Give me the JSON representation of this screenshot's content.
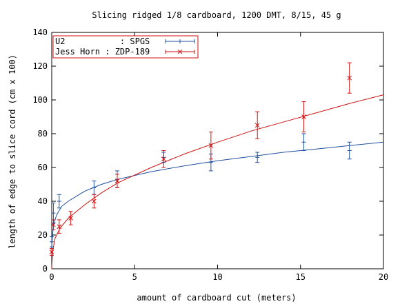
{
  "chart_data": {
    "type": "scatter",
    "title": "Slicing ridged 1/8 cardboard, 1200 DMT, 8/15, 45 g",
    "xlabel": "amount of cardboard cut (meters)",
    "ylabel": "length of edge to slice cord (cm x 100)",
    "xlim": [
      0,
      20
    ],
    "ylim": [
      0,
      140
    ],
    "xticks": [
      0,
      5,
      10,
      15,
      20
    ],
    "yticks": [
      0,
      20,
      40,
      60,
      80,
      100,
      120,
      140
    ],
    "grid": false,
    "legend_position": "top-left",
    "series": [
      {
        "name": "U2           : SPGS",
        "color": "#1f4f9f",
        "marker": "plus",
        "points": [
          {
            "x": 0.0,
            "y": 16,
            "err": 3
          },
          {
            "x": 0.1,
            "y": 33,
            "err": 6
          },
          {
            "x": 0.45,
            "y": 40,
            "err": 4
          },
          {
            "x": 2.55,
            "y": 48,
            "err": 4
          },
          {
            "x": 3.95,
            "y": 53,
            "err": 5
          },
          {
            "x": 6.75,
            "y": 66,
            "err": 3
          },
          {
            "x": 9.6,
            "y": 63,
            "err": 5
          },
          {
            "x": 12.4,
            "y": 66,
            "err": 3
          },
          {
            "x": 15.2,
            "y": 75,
            "err": 5
          },
          {
            "x": 17.95,
            "y": 70,
            "err": 5
          }
        ],
        "fit": [
          {
            "x": 0,
            "y": 13
          },
          {
            "x": 0.1,
            "y": 26
          },
          {
            "x": 0.3,
            "y": 32
          },
          {
            "x": 0.6,
            "y": 37
          },
          {
            "x": 1,
            "y": 40
          },
          {
            "x": 1.5,
            "y": 43
          },
          {
            "x": 2,
            "y": 46
          },
          {
            "x": 3,
            "y": 50
          },
          {
            "x": 4,
            "y": 53
          },
          {
            "x": 6,
            "y": 57.5
          },
          {
            "x": 8,
            "y": 61
          },
          {
            "x": 10,
            "y": 64
          },
          {
            "x": 12,
            "y": 66.5
          },
          {
            "x": 14,
            "y": 69
          },
          {
            "x": 16,
            "y": 71
          },
          {
            "x": 18,
            "y": 73
          },
          {
            "x": 20,
            "y": 75
          }
        ]
      },
      {
        "name": "Jess Horn : ZDP-189",
        "color": "#cc1111",
        "marker": "cross",
        "points": [
          {
            "x": 0.0,
            "y": 10,
            "err": 2
          },
          {
            "x": 0.1,
            "y": 26,
            "err": 3
          },
          {
            "x": 0.45,
            "y": 25,
            "err": 4
          },
          {
            "x": 1.15,
            "y": 30,
            "err": 4
          },
          {
            "x": 2.55,
            "y": 40,
            "err": 4
          },
          {
            "x": 3.95,
            "y": 52,
            "err": 4
          },
          {
            "x": 6.75,
            "y": 65,
            "err": 5
          },
          {
            "x": 9.6,
            "y": 73,
            "err": 8
          },
          {
            "x": 12.4,
            "y": 85,
            "err": 8
          },
          {
            "x": 15.2,
            "y": 90,
            "err": 9
          },
          {
            "x": 17.95,
            "y": 113,
            "err": 9
          }
        ],
        "fit": [
          {
            "x": 0,
            "y": 0
          },
          {
            "x": 0.05,
            "y": 10
          },
          {
            "x": 0.2,
            "y": 18
          },
          {
            "x": 0.5,
            "y": 24
          },
          {
            "x": 1,
            "y": 30
          },
          {
            "x": 2,
            "y": 38
          },
          {
            "x": 3,
            "y": 45
          },
          {
            "x": 4,
            "y": 51
          },
          {
            "x": 6,
            "y": 60
          },
          {
            "x": 8,
            "y": 68
          },
          {
            "x": 10,
            "y": 75
          },
          {
            "x": 12,
            "y": 81.5
          },
          {
            "x": 14,
            "y": 87
          },
          {
            "x": 16,
            "y": 92.5
          },
          {
            "x": 18,
            "y": 98
          },
          {
            "x": 20,
            "y": 103
          }
        ]
      }
    ]
  }
}
